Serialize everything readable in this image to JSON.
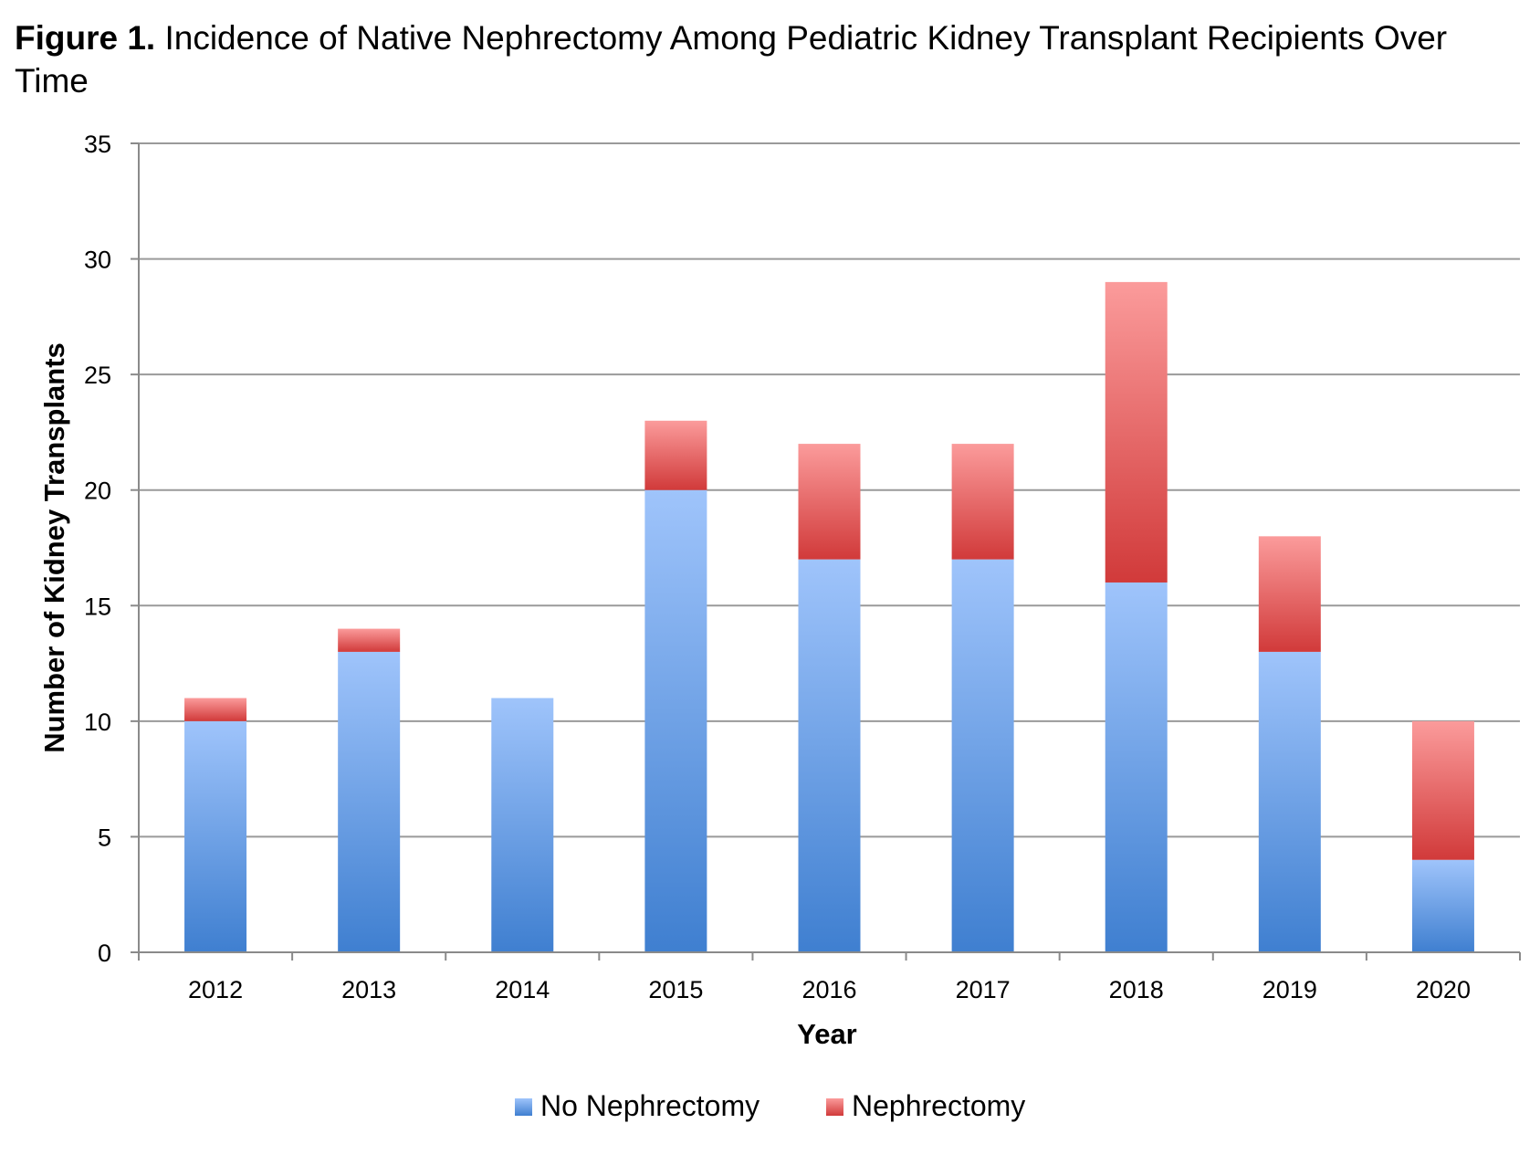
{
  "figure": {
    "label": "Figure 1.",
    "text": " Incidence of Native Nephrectomy Among Pediatric Kidney Transplant Recipients Over Time"
  },
  "chart_data": {
    "type": "bar",
    "stacked": true,
    "categories": [
      "2012",
      "2013",
      "2014",
      "2015",
      "2016",
      "2017",
      "2018",
      "2019",
      "2020"
    ],
    "series": [
      {
        "name": "No Nephrectomy",
        "values": [
          10,
          13,
          11,
          20,
          17,
          17,
          16,
          13,
          4
        ],
        "color": "#4a85d6"
      },
      {
        "name": "Nephrectomy",
        "values": [
          1,
          1,
          0,
          3,
          5,
          5,
          13,
          5,
          6
        ],
        "color": "#d94444"
      }
    ],
    "xlabel": "Year",
    "ylabel": "Number of Kidney Transplants",
    "ylim": [
      0,
      35
    ],
    "yticks": [
      0,
      5,
      10,
      15,
      20,
      25,
      30,
      35
    ],
    "grid": true,
    "legend": "bottom"
  }
}
